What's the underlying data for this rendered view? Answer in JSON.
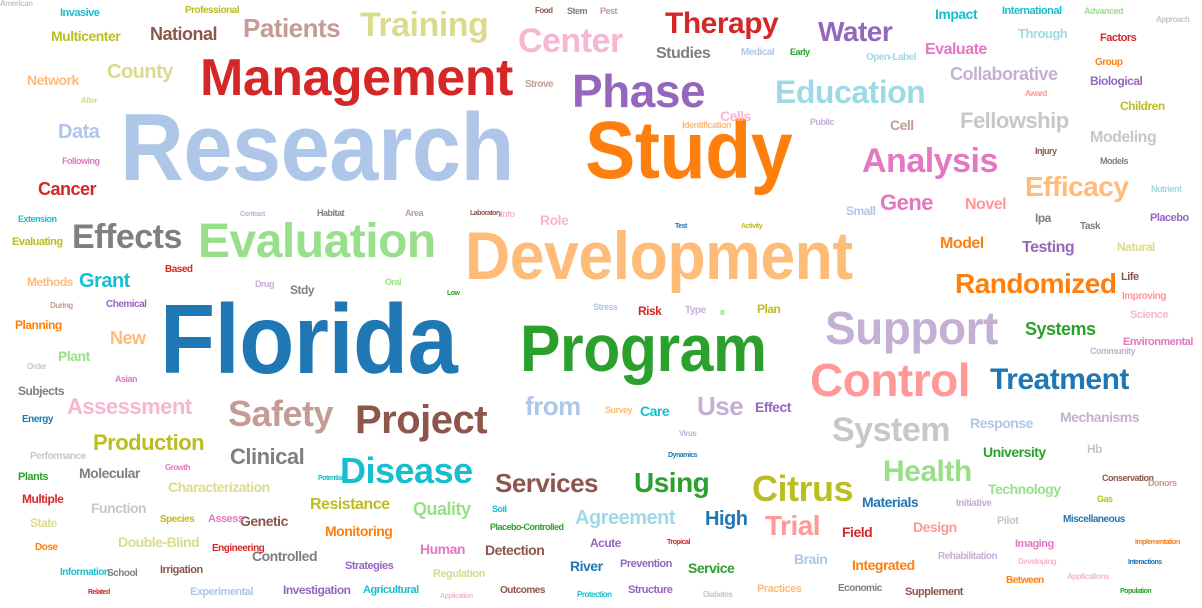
{
  "words": [
    {
      "text": "Research",
      "color": "#aec7e8"
    },
    {
      "text": "Florida",
      "color": "#1f77b4"
    },
    {
      "text": "Study",
      "color": "#ff7f0e"
    },
    {
      "text": "Development",
      "color": "#ffbb78"
    },
    {
      "text": "Program",
      "color": "#2ca02c"
    },
    {
      "text": "Management",
      "color": "#d62728"
    },
    {
      "text": "Evaluation",
      "color": "#98df8a"
    },
    {
      "text": "Control",
      "color": "#ff9896"
    },
    {
      "text": "Support",
      "color": "#c5b0d5"
    },
    {
      "text": "Phase",
      "color": "#9467bd"
    },
    {
      "text": "Project",
      "color": "#8c564b"
    },
    {
      "text": "Disease",
      "color": "#17becf"
    },
    {
      "text": "Safety",
      "color": "#c49c94"
    },
    {
      "text": "Treatment",
      "color": "#1f77b4"
    },
    {
      "text": "Analysis",
      "color": "#e377c2"
    },
    {
      "text": "Effects",
      "color": "#7f7f7f"
    },
    {
      "text": "Training",
      "color": "#dbdb8d"
    },
    {
      "text": "Center",
      "color": "#f7b6d2"
    },
    {
      "text": "Therapy",
      "color": "#d62728"
    },
    {
      "text": "Education",
      "color": "#9edae5"
    },
    {
      "text": "System",
      "color": "#c7c7c7"
    },
    {
      "text": "Randomized",
      "color": "#ff7f0e"
    },
    {
      "text": "Citrus",
      "color": "#bcbd22"
    },
    {
      "text": "Health",
      "color": "#98df8a"
    },
    {
      "text": "Water",
      "color": "#9467bd"
    },
    {
      "text": "Efficacy",
      "color": "#ffbb78"
    },
    {
      "text": "Patients",
      "color": "#c49c94"
    },
    {
      "text": "Services",
      "color": "#8c564b"
    },
    {
      "text": "Using",
      "color": "#2ca02c"
    },
    {
      "text": "Trial",
      "color": "#ff9896"
    },
    {
      "text": "from",
      "color": "#aec7e8"
    },
    {
      "text": "Use",
      "color": "#c5b0d5"
    },
    {
      "text": "Clinical",
      "color": "#7f7f7f"
    },
    {
      "text": "Fellowship",
      "color": "#c7c7c7"
    },
    {
      "text": "Assessment",
      "color": "#f7b6d2"
    },
    {
      "text": "Production",
      "color": "#bcbd22"
    },
    {
      "text": "Agreement",
      "color": "#9edae5"
    },
    {
      "text": "Gene",
      "color": "#e377c2"
    },
    {
      "text": "County",
      "color": "#dbdb8d"
    },
    {
      "text": "National",
      "color": "#8c564b"
    },
    {
      "text": "Cancer",
      "color": "#d62728"
    },
    {
      "text": "Grant",
      "color": "#17becf"
    },
    {
      "text": "Data",
      "color": "#aec7e8"
    },
    {
      "text": "Collaborative",
      "color": "#c5b0d5"
    },
    {
      "text": "Evaluate",
      "color": "#e377c2"
    },
    {
      "text": "Modeling",
      "color": "#c7c7c7"
    },
    {
      "text": "Novel",
      "color": "#ff9896"
    },
    {
      "text": "Model",
      "color": "#ff7f0e"
    },
    {
      "text": "Testing",
      "color": "#9467bd"
    },
    {
      "text": "Systems",
      "color": "#2ca02c"
    },
    {
      "text": "Studies",
      "color": "#7f7f7f"
    },
    {
      "text": "Quality",
      "color": "#98df8a"
    },
    {
      "text": "Resistance",
      "color": "#bcbd22"
    },
    {
      "text": "High",
      "color": "#1f77b4"
    },
    {
      "text": "Molecular",
      "color": "#7f7f7f"
    },
    {
      "text": "Characterization",
      "color": "#dbdb8d"
    },
    {
      "text": "Materials",
      "color": "#1f77b4"
    },
    {
      "text": "University",
      "color": "#2ca02c"
    },
    {
      "text": "Technology",
      "color": "#98df8a"
    },
    {
      "text": "Monitoring",
      "color": "#ff7f0e"
    },
    {
      "text": "Detection",
      "color": "#8c564b"
    },
    {
      "text": "Response",
      "color": "#aec7e8"
    },
    {
      "text": "Mechanisms",
      "color": "#c5b0d5"
    },
    {
      "text": "Plant",
      "color": "#98df8a"
    },
    {
      "text": "New",
      "color": "#ffbb78"
    },
    {
      "text": "Network",
      "color": "#ffbb78"
    },
    {
      "text": "Multicenter",
      "color": "#bcbd22"
    },
    {
      "text": "Impact",
      "color": "#17becf"
    },
    {
      "text": "Through",
      "color": "#9edae5"
    },
    {
      "text": "Cell",
      "color": "#c49c94"
    },
    {
      "text": "Biological",
      "color": "#9467bd"
    },
    {
      "text": "Children",
      "color": "#bcbd22"
    },
    {
      "text": "Role",
      "color": "#f7b6d2"
    },
    {
      "text": "Human",
      "color": "#e377c2"
    },
    {
      "text": "Genetic",
      "color": "#8c564b"
    },
    {
      "text": "Function",
      "color": "#c7c7c7"
    },
    {
      "text": "Design",
      "color": "#ff9896"
    },
    {
      "text": "Field",
      "color": "#d62728"
    },
    {
      "text": "Integrated",
      "color": "#ff7f0e"
    },
    {
      "text": "Brain",
      "color": "#aec7e8"
    },
    {
      "text": "Controlled",
      "color": "#7f7f7f"
    },
    {
      "text": "Double-Blind",
      "color": "#dbdb8d"
    },
    {
      "text": "River",
      "color": "#1f77b4"
    },
    {
      "text": "Service",
      "color": "#2ca02c"
    },
    {
      "text": "Effect",
      "color": "#9467bd"
    },
    {
      "text": "Care",
      "color": "#17becf"
    },
    {
      "text": "Risk",
      "color": "#d62728"
    },
    {
      "text": "Cells",
      "color": "#f7b6d2"
    },
    {
      "text": "Invasive",
      "color": "#17becf"
    },
    {
      "text": "Professional",
      "color": "#bcbd22"
    },
    {
      "text": "International",
      "color": "#17becf"
    },
    {
      "text": "Advanced",
      "color": "#98df8a"
    },
    {
      "text": "Approach",
      "color": "#c7c7c7"
    },
    {
      "text": "Factors",
      "color": "#d62728"
    },
    {
      "text": "Open-Label",
      "color": "#9edae5"
    },
    {
      "text": "Group",
      "color": "#ff7f0e"
    },
    {
      "text": "Strove",
      "color": "#c49c94"
    },
    {
      "text": "Medical",
      "color": "#aec7e8"
    },
    {
      "text": "Early",
      "color": "#2ca02c"
    },
    {
      "text": "Food",
      "color": "#8c564b"
    },
    {
      "text": "Stem",
      "color": "#7f7f7f"
    },
    {
      "text": "Pest",
      "color": "#c49c94"
    },
    {
      "text": "Public",
      "color": "#c5b0d5"
    },
    {
      "text": "Identification",
      "color": "#ffbb78"
    },
    {
      "text": "After",
      "color": "#dbdb8d"
    },
    {
      "text": "Award",
      "color": "#ff9896"
    },
    {
      "text": "Following",
      "color": "#e377c2"
    },
    {
      "text": "Injury",
      "color": "#8c564b"
    },
    {
      "text": "Models",
      "color": "#7f7f7f"
    },
    {
      "text": "Nutrient",
      "color": "#9edae5"
    },
    {
      "text": "Extension",
      "color": "#17becf"
    },
    {
      "text": "Evaluating",
      "color": "#bcbd22"
    },
    {
      "text": "Contract",
      "color": "#c5b0d5"
    },
    {
      "text": "Habitat",
      "color": "#7f7f7f"
    },
    {
      "text": "Area",
      "color": "#c49c94"
    },
    {
      "text": "Laboratory",
      "color": "#8c564b"
    },
    {
      "text": "Info",
      "color": "#f7b6d2"
    },
    {
      "text": "Test",
      "color": "#1f77b4"
    },
    {
      "text": "Activity",
      "color": "#bcbd22"
    },
    {
      "text": "Small",
      "color": "#aec7e8"
    },
    {
      "text": "Ipa",
      "color": "#7f7f7f"
    },
    {
      "text": "Task",
      "color": "#7f7f7f"
    },
    {
      "text": "Placebo",
      "color": "#9467bd"
    },
    {
      "text": "Natural",
      "color": "#dbdb8d"
    },
    {
      "text": "Methods",
      "color": "#ffbb78"
    },
    {
      "text": "Based",
      "color": "#d62728"
    },
    {
      "text": "Drug",
      "color": "#c5b0d5"
    },
    {
      "text": "Stdy",
      "color": "#7f7f7f"
    },
    {
      "text": "Oral",
      "color": "#98df8a"
    },
    {
      "text": "Low",
      "color": "#2ca02c"
    },
    {
      "text": "Life",
      "color": "#8c564b"
    },
    {
      "text": "Improving",
      "color": "#ff9896"
    },
    {
      "text": "During",
      "color": "#c49c94"
    },
    {
      "text": "Chemical",
      "color": "#9467bd"
    },
    {
      "text": "Stress",
      "color": "#aec7e8"
    },
    {
      "text": "Type",
      "color": "#c5b0d5"
    },
    {
      "text": "III",
      "color": "#98df8a"
    },
    {
      "text": "Plan",
      "color": "#bcbd22"
    },
    {
      "text": "Science",
      "color": "#f7b6d2"
    },
    {
      "text": "Planning",
      "color": "#ff7f0e"
    },
    {
      "text": "Environmental",
      "color": "#e377c2"
    },
    {
      "text": "Community",
      "color": "#c5b0d5"
    },
    {
      "text": "Order",
      "color": "#c7c7c7"
    },
    {
      "text": "Asian",
      "color": "#e377c2"
    },
    {
      "text": "Subjects",
      "color": "#7f7f7f"
    },
    {
      "text": "Energy",
      "color": "#1f77b4"
    },
    {
      "text": "Survey",
      "color": "#ffbb78"
    },
    {
      "text": "Virus",
      "color": "#c5b0d5"
    },
    {
      "text": "Hb",
      "color": "#c7c7c7"
    },
    {
      "text": "Performance",
      "color": "#c7c7c7"
    },
    {
      "text": "Dynamics",
      "color": "#1f77b4"
    },
    {
      "text": "Plants",
      "color": "#2ca02c"
    },
    {
      "text": "Growth",
      "color": "#e377c2"
    },
    {
      "text": "Conservation",
      "color": "#8c564b"
    },
    {
      "text": "Donors",
      "color": "#c49c94"
    },
    {
      "text": "Multiple",
      "color": "#d62728"
    },
    {
      "text": "Potential",
      "color": "#17becf"
    },
    {
      "text": "Gas",
      "color": "#bcbd22"
    },
    {
      "text": "Initiative",
      "color": "#c5b0d5"
    },
    {
      "text": "State",
      "color": "#dbdb8d"
    },
    {
      "text": "Species",
      "color": "#bcbd22"
    },
    {
      "text": "Assess",
      "color": "#e377c2"
    },
    {
      "text": "Soil",
      "color": "#17becf"
    },
    {
      "text": "Pilot",
      "color": "#c7c7c7"
    },
    {
      "text": "Miscellaneous",
      "color": "#1f77b4"
    },
    {
      "text": "Placebo-Controlled",
      "color": "#2ca02c"
    },
    {
      "text": "Dose",
      "color": "#ff7f0e"
    },
    {
      "text": "Engineering",
      "color": "#d62728"
    },
    {
      "text": "Acute",
      "color": "#9467bd"
    },
    {
      "text": "Tropical",
      "color": "#d62728"
    },
    {
      "text": "Imaging",
      "color": "#e377c2"
    },
    {
      "text": "Implementation",
      "color": "#ff7f0e"
    },
    {
      "text": "Rehabilitation",
      "color": "#c5b0d5"
    },
    {
      "text": "Information",
      "color": "#17becf"
    },
    {
      "text": "School",
      "color": "#7f7f7f"
    },
    {
      "text": "Irrigation",
      "color": "#8c564b"
    },
    {
      "text": "Strategies",
      "color": "#9467bd"
    },
    {
      "text": "Regulation",
      "color": "#dbdb8d"
    },
    {
      "text": "Prevention",
      "color": "#9467bd"
    },
    {
      "text": "Developing",
      "color": "#f7b6d2"
    },
    {
      "text": "Applications",
      "color": "#f7b6d2"
    },
    {
      "text": "Interactions",
      "color": "#1f77b4"
    },
    {
      "text": "Between",
      "color": "#ff7f0e"
    },
    {
      "text": "Related",
      "color": "#d62728"
    },
    {
      "text": "Experimental",
      "color": "#aec7e8"
    },
    {
      "text": "Investigation",
      "color": "#9467bd"
    },
    {
      "text": "Agricultural",
      "color": "#17becf"
    },
    {
      "text": "Application",
      "color": "#f7b6d2"
    },
    {
      "text": "Outcomes",
      "color": "#8c564b"
    },
    {
      "text": "Protection",
      "color": "#17becf"
    },
    {
      "text": "Structure",
      "color": "#9467bd"
    },
    {
      "text": "Diabetes",
      "color": "#c7c7c7"
    },
    {
      "text": "Practices",
      "color": "#ffbb78"
    },
    {
      "text": "Economic",
      "color": "#7f7f7f"
    },
    {
      "text": "Supplement",
      "color": "#8c564b"
    },
    {
      "text": "Population",
      "color": "#2ca02c"
    },
    {
      "text": "American",
      "color": "#c7c7c7"
    }
  ]
}
